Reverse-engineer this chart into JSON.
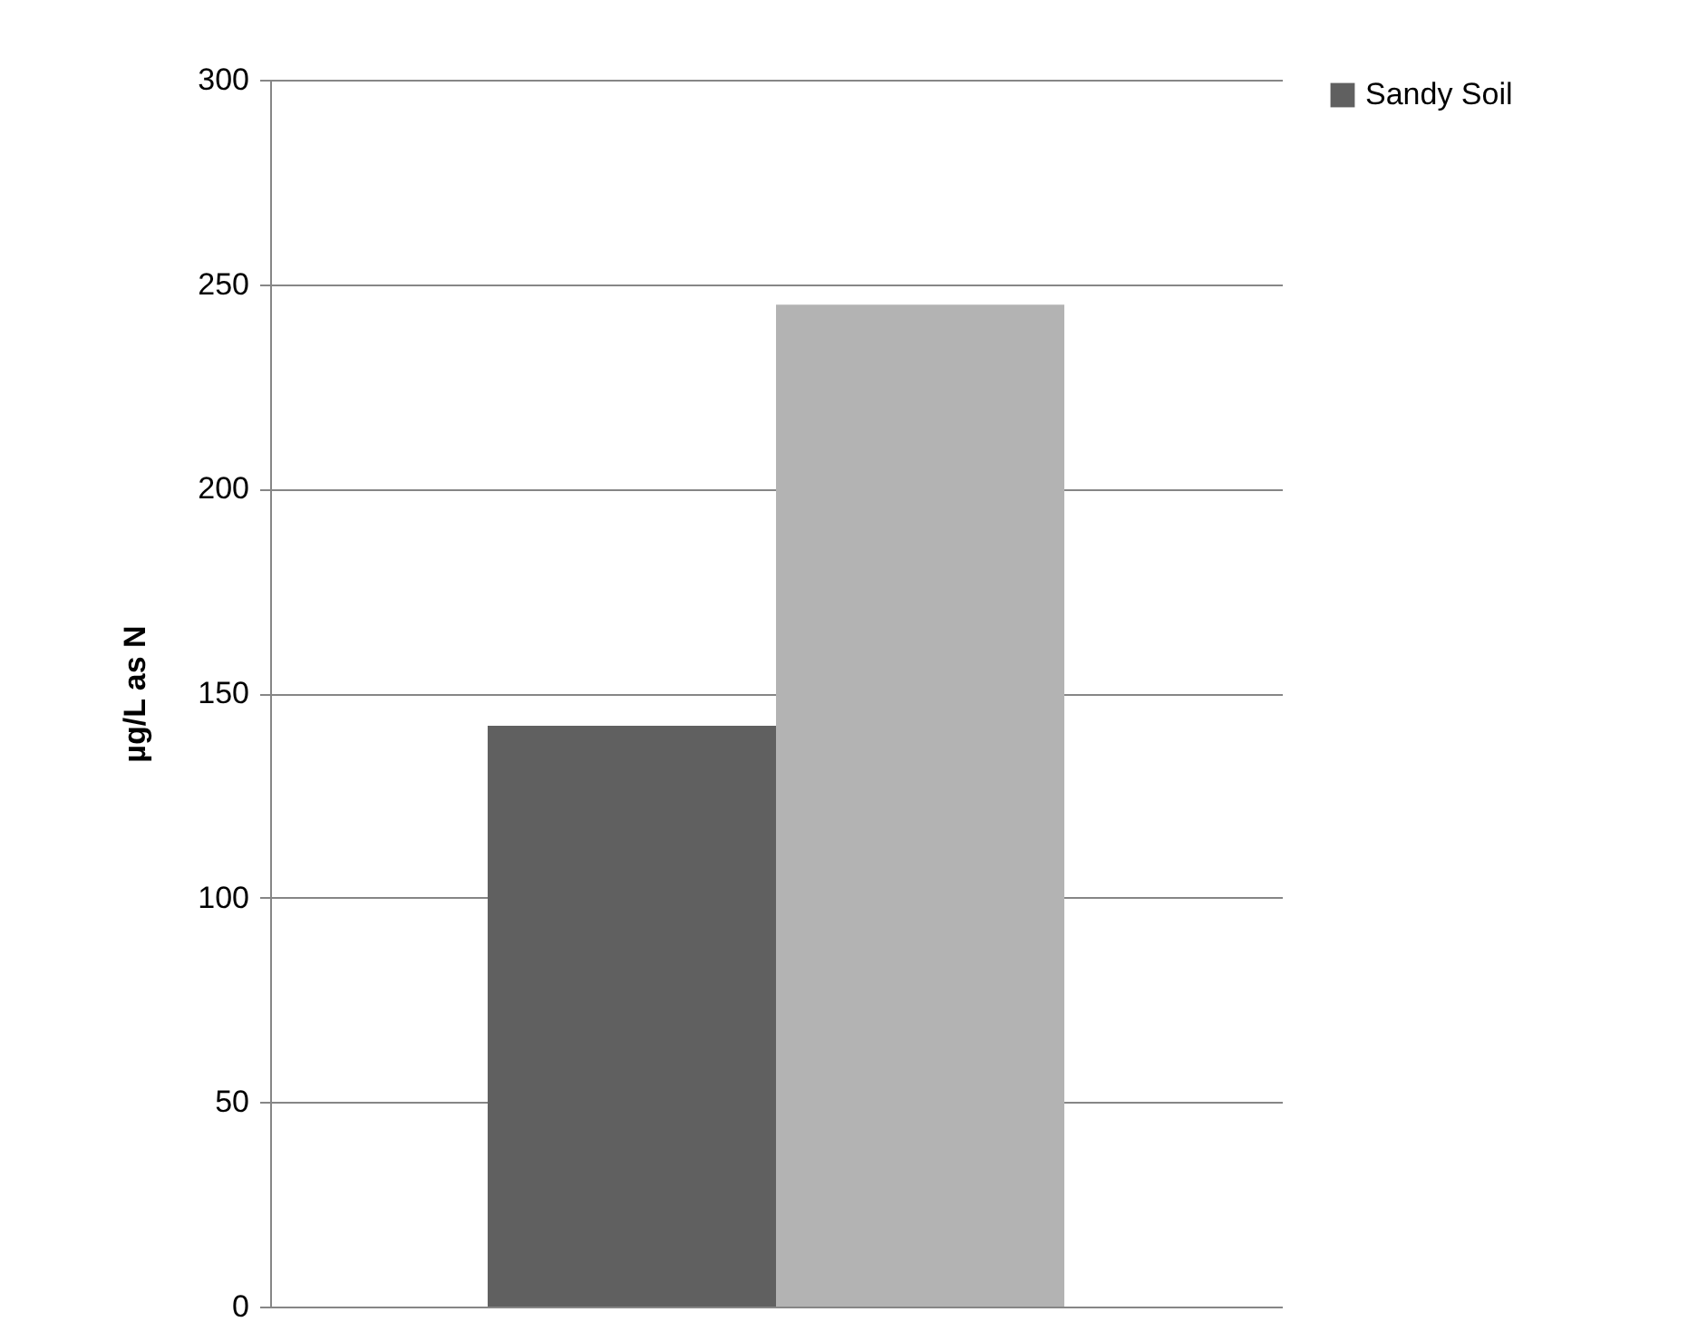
{
  "chart_data": {
    "type": "bar",
    "ylabel": "µg/L as N",
    "categories": [
      null
    ],
    "series": [
      {
        "name": "Sandy Soil",
        "color": "#606060",
        "values": [
          142
        ]
      },
      {
        "color": "#b3b3b3",
        "values": [
          245
        ]
      }
    ],
    "ylim": [
      0,
      300
    ],
    "yticks": [
      0,
      50,
      100,
      150,
      200,
      250,
      300
    ],
    "grid": "y",
    "legend": "right"
  }
}
